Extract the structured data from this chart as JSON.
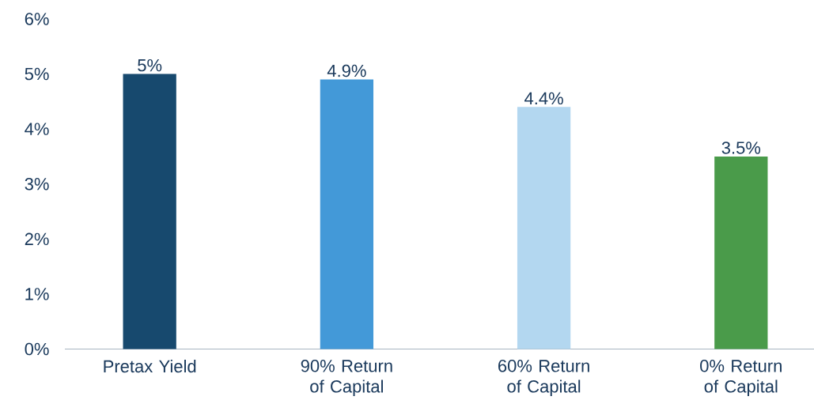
{
  "chart_data": {
    "type": "bar",
    "categories": [
      "Pretax Yield",
      "90% Return of Capital",
      "60% Return of Capital",
      "0% Return of Capital"
    ],
    "values": [
      5,
      4.9,
      4.4,
      3.5
    ],
    "value_labels": [
      "5%",
      "4.9%",
      "4.4%",
      "3.5%"
    ],
    "colors": [
      "#17496e",
      "#4399d8",
      "#b3d7f0",
      "#4a9b4a"
    ],
    "ylim": [
      0,
      6
    ],
    "yticks": [
      {
        "value": 0,
        "label": "0%"
      },
      {
        "value": 1,
        "label": "1%"
      },
      {
        "value": 2,
        "label": "2%"
      },
      {
        "value": 3,
        "label": "3%"
      },
      {
        "value": 4,
        "label": "4%"
      },
      {
        "value": 5,
        "label": "5%"
      },
      {
        "value": 6,
        "label": "6%"
      }
    ]
  }
}
